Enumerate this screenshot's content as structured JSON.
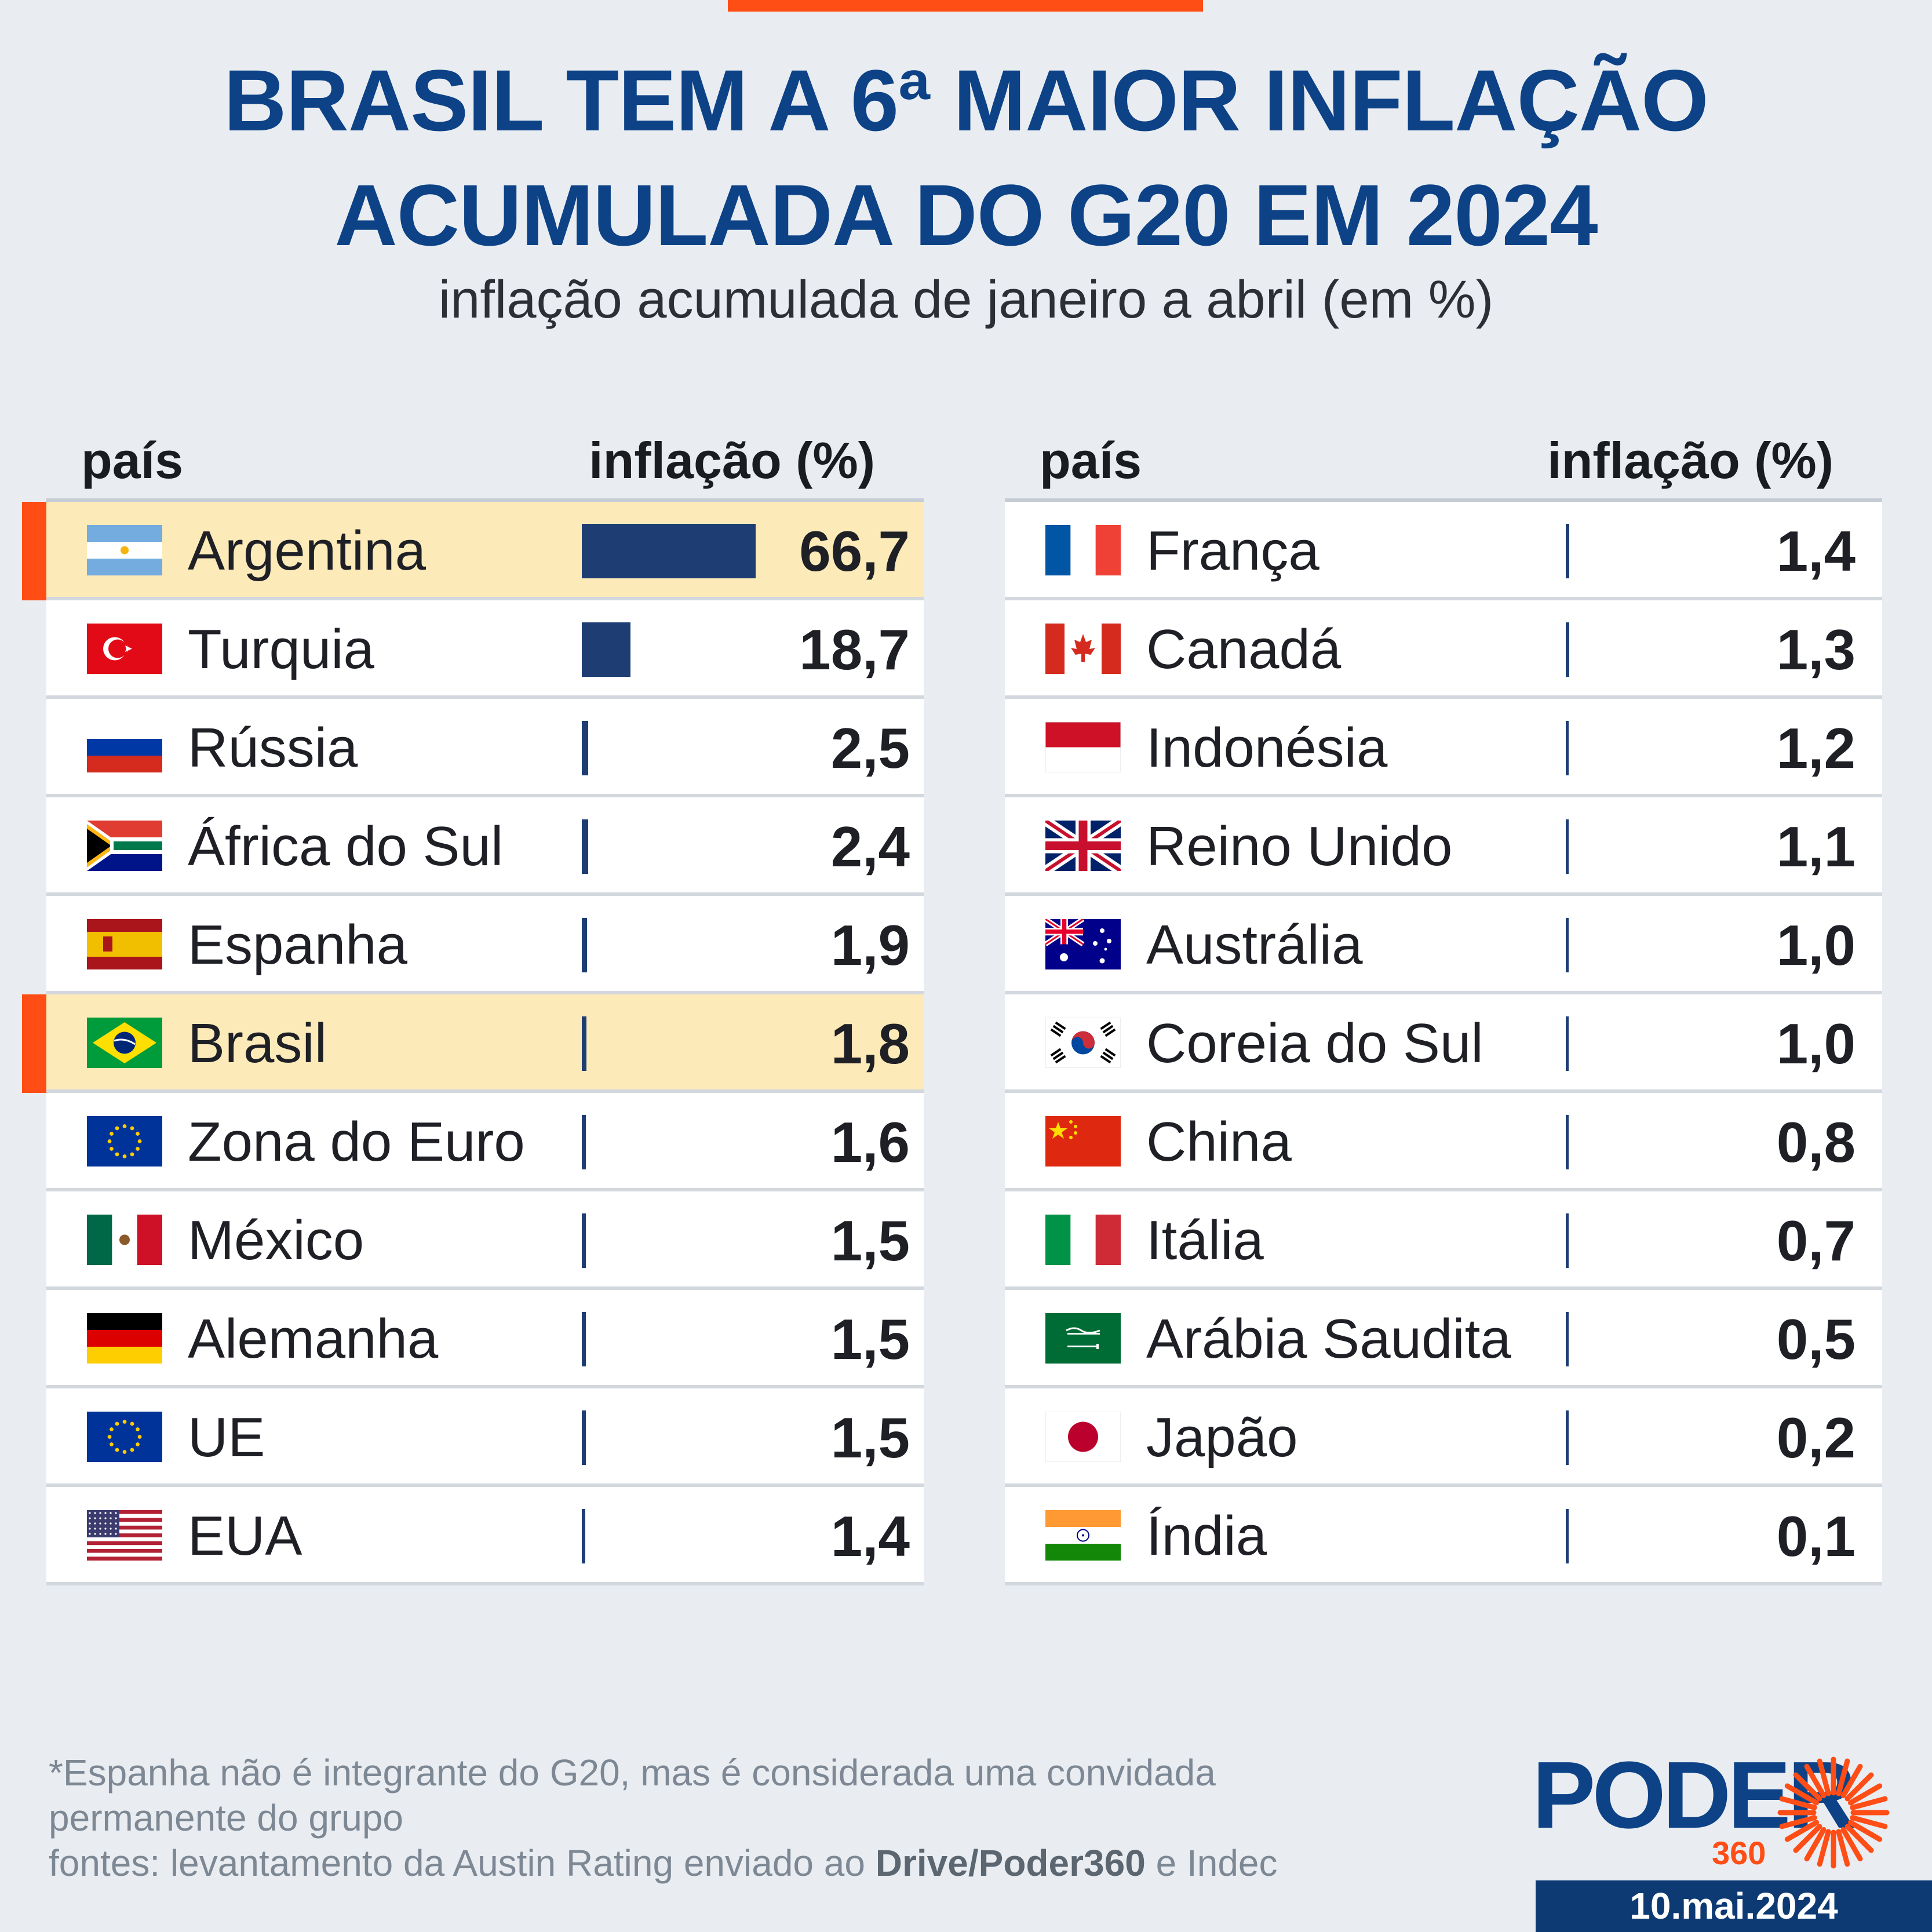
{
  "header": {
    "title_line1": "BRASIL TEM A 6ª MAIOR INFLAÇÃO",
    "title_line2": "ACUMULADA DO G20 EM 2024",
    "subtitle": "inflação acumulada de janeiro a abril (em %)"
  },
  "columns": {
    "country": "país",
    "value": "inflação (%)"
  },
  "colors": {
    "accent": "#ff4d16",
    "bar": "#1d3d73",
    "title": "#0d4287",
    "highlight": "#fdeab9"
  },
  "chart_data": {
    "type": "bar",
    "title": "BRASIL TEM A 6ª MAIOR INFLAÇÃO ACUMULADA DO G20 EM 2024",
    "subtitle": "inflação acumulada de janeiro a abril (em %)",
    "xlabel": "país",
    "ylabel": "inflação (%)",
    "highlighted": [
      "Argentina",
      "Brasil"
    ],
    "categories": [
      "Argentina",
      "Turquia",
      "Rússia",
      "África do Sul",
      "Espanha",
      "Brasil",
      "Zona do Euro",
      "México",
      "Alemanha",
      "UE",
      "EUA",
      "França",
      "Canadá",
      "Indonésia",
      "Reino Unido",
      "Austrália",
      "Coreia do Sul",
      "China",
      "Itália",
      "Arábia Saudita",
      "Japão",
      "Índia"
    ],
    "values": [
      66.7,
      18.7,
      2.5,
      2.4,
      1.9,
      1.8,
      1.6,
      1.5,
      1.5,
      1.5,
      1.4,
      1.4,
      1.3,
      1.2,
      1.1,
      1.0,
      1.0,
      0.8,
      0.7,
      0.5,
      0.2,
      0.1
    ],
    "value_labels": [
      "66,7",
      "18,7",
      "2,5",
      "2,4",
      "1,9",
      "1,8",
      "1,6",
      "1,5",
      "1,5",
      "1,5",
      "1,4",
      "1,4",
      "1,3",
      "1,2",
      "1,1",
      "1,0",
      "1,0",
      "0,8",
      "0,7",
      "0,5",
      "0,2",
      "0,1"
    ],
    "flags": [
      "flag-argentina",
      "flag-turkey",
      "flag-russia",
      "flag-south-africa",
      "flag-spain",
      "flag-brazil",
      "flag-eu",
      "flag-mexico",
      "flag-germany",
      "flag-eu",
      "flag-usa",
      "flag-france",
      "flag-canada",
      "flag-indonesia",
      "flag-uk",
      "flag-australia",
      "flag-south-korea",
      "flag-china",
      "flag-italy",
      "flag-saudi-arabia",
      "flag-japan",
      "flag-india"
    ]
  },
  "footer": {
    "note": "*Espanha não é integrante do G20, mas é considerada uma convidada",
    "note2": "permanente do grupo",
    "source_prefix": "fontes: levantamento da Austin Rating enviado ao ",
    "source_bold": "Drive/Poder360",
    "source_suffix": " e Indec",
    "date": "10.mai.2024"
  },
  "logo": {
    "word": "PODER",
    "number": "360"
  }
}
